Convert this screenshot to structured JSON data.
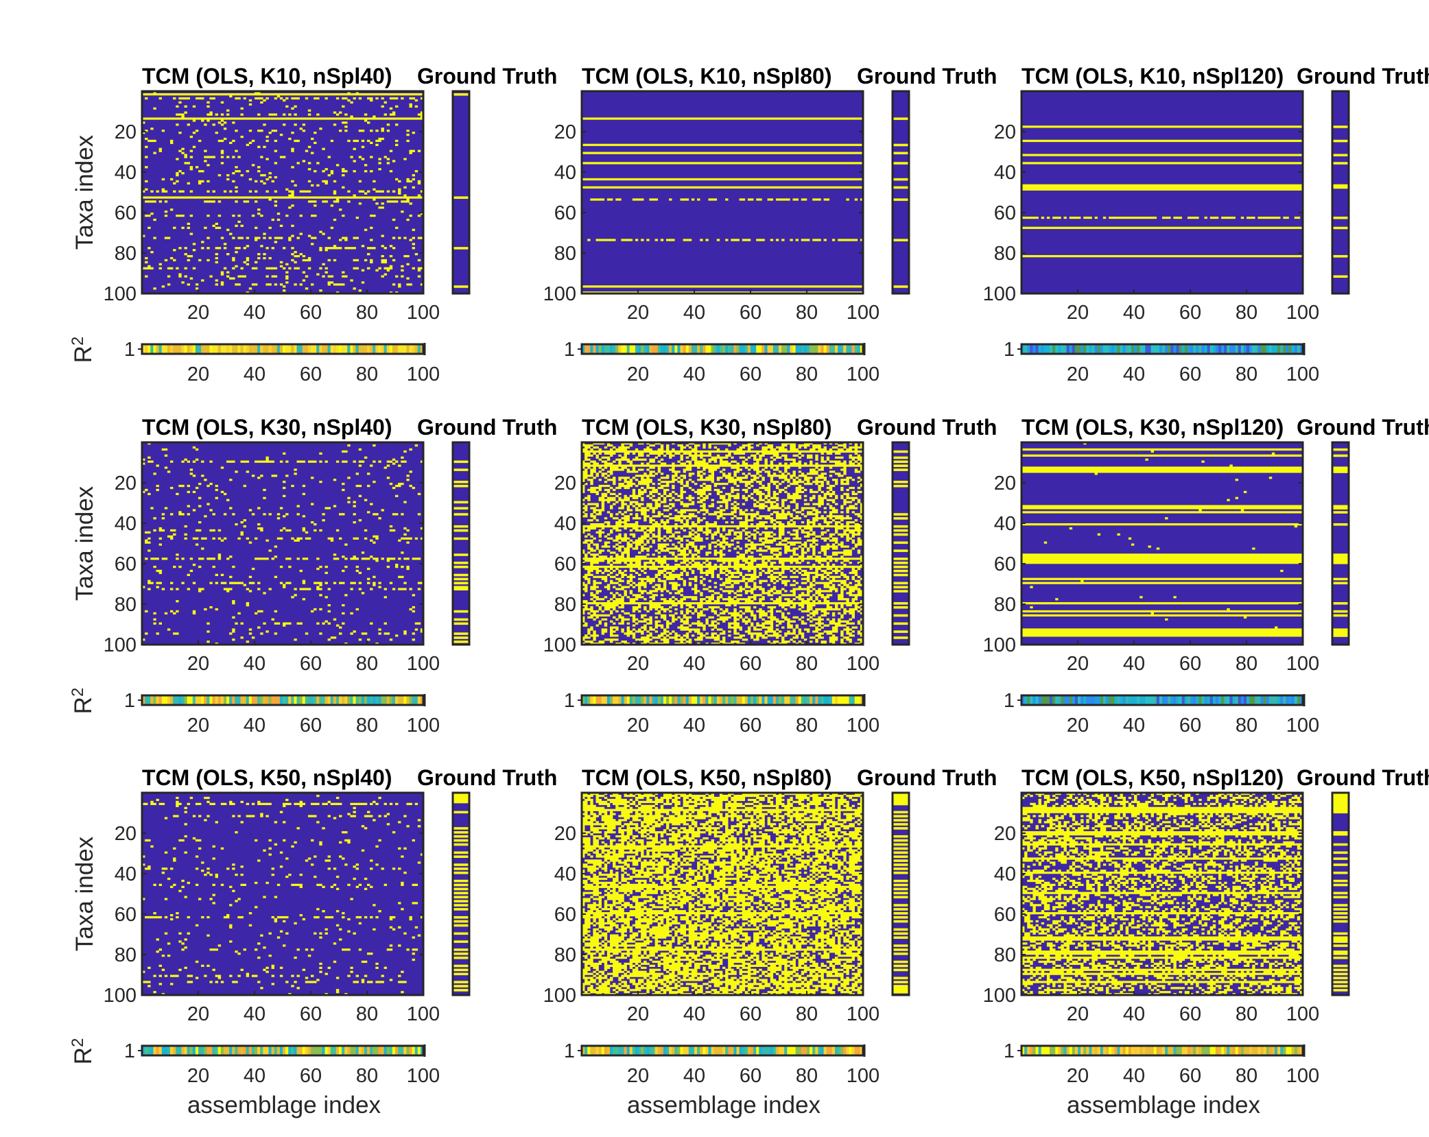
{
  "figure": {
    "ylabel": "Taxa index",
    "r2_label": "R",
    "r2_label_sup": "2",
    "xlabel": "assemblage index",
    "gt_title": "Ground Truth"
  },
  "colors": {
    "absent": "#3e26a8",
    "present": "#f9fb0e",
    "frame": "#262626"
  },
  "chart_data": [
    {
      "type": "heatmap",
      "title": "TCM (OLS, K10, nSpl40)",
      "K": 10,
      "nSpl": 40,
      "x_ticks": [
        20,
        40,
        60,
        80,
        100
      ],
      "y_ticks": [
        20,
        40,
        60,
        80,
        100
      ],
      "r2_ytick": "1",
      "r2_xticks": [
        20,
        40,
        60,
        80,
        100
      ],
      "rows": 100,
      "cols": 100,
      "full_rows": [
        2,
        14,
        53
      ],
      "dense_rows": {
        "4": 0.45,
        "8": 0.2,
        "12": 0.25,
        "20": 0.18,
        "25": 0.22,
        "30": 0.15,
        "33": 0.18,
        "40": 0.15,
        "45": 0.2,
        "50": 0.35,
        "55": 0.3,
        "62": 0.2,
        "68": 0.15,
        "73": 0.4,
        "78": 0.35,
        "84": 0.2,
        "88": 0.35,
        "92": 0.25,
        "96": 0.3
      },
      "noise": 0.04,
      "ground_truth_rows": [
        2,
        53,
        78,
        97
      ],
      "r2_palette": "yellow"
    },
    {
      "type": "heatmap",
      "title": "TCM (OLS, K10, nSpl80)",
      "K": 10,
      "nSpl": 80,
      "x_ticks": [
        20,
        40,
        60,
        80,
        100
      ],
      "y_ticks": [
        20,
        40,
        60,
        80,
        100
      ],
      "r2_ytick": "1",
      "r2_xticks": [
        20,
        40,
        60,
        80,
        100
      ],
      "rows": 100,
      "cols": 100,
      "full_rows": [
        14,
        27,
        31,
        36,
        44,
        48,
        97,
        100
      ],
      "dense_rows": {
        "54": 0.45,
        "74": 0.55
      },
      "noise": 0,
      "ground_truth_rows": [
        14,
        27,
        31,
        36,
        44,
        48,
        54,
        74,
        97
      ],
      "r2_palette": "mixed"
    },
    {
      "type": "heatmap",
      "title": "TCM (OLS, K10, nSpl120)",
      "K": 10,
      "nSpl": 120,
      "x_ticks": [
        20,
        40,
        60,
        80,
        100
      ],
      "y_ticks": [
        20,
        40,
        60,
        80,
        100
      ],
      "r2_ytick": "1",
      "r2_xticks": [
        20,
        40,
        60,
        80,
        100
      ],
      "rows": 100,
      "cols": 100,
      "full_rows": [
        18,
        25,
        32,
        36,
        47,
        48,
        49,
        68,
        82
      ],
      "dense_rows": {
        "63": 0.7
      },
      "noise": 0,
      "ground_truth_rows": [
        18,
        25,
        32,
        36,
        47,
        48,
        63,
        68,
        82,
        92
      ],
      "r2_palette": "cool"
    },
    {
      "type": "heatmap",
      "title": "TCM (OLS, K30, nSpl40)",
      "K": 30,
      "nSpl": 40,
      "x_ticks": [
        20,
        40,
        60,
        80,
        100
      ],
      "y_ticks": [
        20,
        40,
        60,
        80,
        100
      ],
      "r2_ytick": "1",
      "r2_xticks": [
        20,
        40,
        60,
        80,
        100
      ],
      "rows": 100,
      "cols": 100,
      "full_rows": [],
      "dense_rows": {
        "10": 0.45,
        "22": 0.15,
        "36": 0.2,
        "44": 0.25,
        "48": 0.3,
        "58": 0.45,
        "62": 0.15,
        "70": 0.35,
        "73": 0.3,
        "84": 0.15,
        "90": 0.2,
        "95": 0.15
      },
      "noise": 0.035,
      "ground_truth_rows": [
        10,
        14,
        20,
        22,
        30,
        33,
        36,
        42,
        44,
        48,
        56,
        60,
        62,
        66,
        68,
        70,
        72,
        73,
        84,
        88,
        90,
        95,
        97,
        99
      ],
      "r2_palette": "mixed"
    },
    {
      "type": "heatmap",
      "title": "TCM (OLS, K30, nSpl80)",
      "K": 30,
      "nSpl": 80,
      "x_ticks": [
        20,
        40,
        60,
        80,
        100
      ],
      "y_ticks": [
        20,
        40,
        60,
        80,
        100
      ],
      "r2_ytick": "1",
      "r2_xticks": [
        20,
        40,
        60,
        80,
        100
      ],
      "rows": 100,
      "cols": 100,
      "full_rows": [
        5,
        12,
        42,
        58,
        62,
        80
      ],
      "dense_rows": {},
      "noise": 0.45,
      "ground_truth_rows": [
        5,
        8,
        10,
        12,
        14,
        20,
        22,
        36,
        38,
        42,
        44,
        46,
        50,
        54,
        58,
        60,
        62,
        64,
        66,
        70,
        72,
        74,
        80,
        82,
        86,
        90,
        94,
        97
      ],
      "r2_palette": "mixed"
    },
    {
      "type": "heatmap",
      "title": "TCM (OLS, K30, nSpl120)",
      "K": 30,
      "nSpl": 120,
      "x_ticks": [
        20,
        40,
        60,
        80,
        100
      ],
      "y_ticks": [
        20,
        40,
        60,
        80,
        100
      ],
      "r2_ytick": "1",
      "r2_xticks": [
        20,
        40,
        60,
        80,
        100
      ],
      "rows": 100,
      "cols": 100,
      "full_rows": [
        4,
        7,
        13,
        14,
        15,
        32,
        33,
        35,
        41,
        56,
        57,
        58,
        59,
        60,
        68,
        70,
        80,
        84,
        86,
        93,
        94,
        95,
        96
      ],
      "dense_rows": {},
      "noise": 0.005,
      "ground_truth_rows": [
        4,
        7,
        13,
        14,
        15,
        32,
        33,
        35,
        41,
        56,
        57,
        58,
        59,
        60,
        68,
        70,
        80,
        84,
        86,
        93,
        94,
        95,
        96
      ],
      "r2_palette": "cool"
    },
    {
      "type": "heatmap",
      "title": "TCM (OLS, K50, nSpl40)",
      "K": 50,
      "nSpl": 40,
      "x_ticks": [
        20,
        40,
        60,
        80,
        100
      ],
      "y_ticks": [
        20,
        40,
        60,
        80,
        100
      ],
      "r2_ytick": "1",
      "r2_xticks": [
        20,
        40,
        60,
        80,
        100
      ],
      "rows": 100,
      "cols": 100,
      "full_rows": [],
      "dense_rows": {
        "6": 0.6,
        "12": 0.2,
        "24": 0.15,
        "38": 0.15,
        "46": 0.2,
        "62": 0.35,
        "70": 0.15,
        "78": 0.15,
        "91": 0.2,
        "94": 0.3
      },
      "noise": 0.03,
      "ground_truth_rows": [
        1,
        2,
        3,
        4,
        5,
        10,
        18,
        20,
        22,
        24,
        26,
        30,
        32,
        36,
        38,
        40,
        44,
        46,
        48,
        50,
        52,
        54,
        56,
        58,
        62,
        64,
        66,
        70,
        74,
        78,
        80,
        82,
        86,
        88,
        90,
        94,
        96,
        98
      ],
      "r2_palette": "mixed"
    },
    {
      "type": "heatmap",
      "title": "TCM (OLS, K50, nSpl80)",
      "K": 50,
      "nSpl": 80,
      "x_ticks": [
        20,
        40,
        60,
        80,
        100
      ],
      "y_ticks": [
        20,
        40,
        60,
        80,
        100
      ],
      "r2_ytick": "1",
      "r2_xticks": [
        20,
        40,
        60,
        80,
        100
      ],
      "rows": 100,
      "cols": 100,
      "full_rows": [
        9,
        27,
        47,
        60,
        78
      ],
      "dense_rows": {},
      "noise": 0.62,
      "ground_truth_rows": [
        1,
        2,
        3,
        4,
        5,
        6,
        10,
        12,
        14,
        16,
        18,
        22,
        24,
        26,
        28,
        30,
        32,
        34,
        36,
        38,
        40,
        44,
        46,
        48,
        50,
        52,
        56,
        58,
        60,
        62,
        64,
        68,
        70,
        72,
        76,
        78,
        80,
        84,
        86,
        88,
        92,
        94,
        96,
        97,
        98,
        99
      ],
      "r2_palette": "mixed"
    },
    {
      "type": "heatmap",
      "title": "TCM (OLS, K50, nSpl120)",
      "K": 50,
      "nSpl": 120,
      "x_ticks": [
        20,
        40,
        60,
        80,
        100
      ],
      "y_ticks": [
        20,
        40,
        60,
        80,
        100
      ],
      "r2_ytick": "1",
      "r2_xticks": [
        20,
        40,
        60,
        80,
        100
      ],
      "rows": 100,
      "cols": 100,
      "full_rows": [
        8,
        9,
        10,
        20,
        21,
        26,
        33,
        40,
        50,
        60,
        72,
        73,
        79,
        80,
        82,
        88,
        90,
        94
      ],
      "dense_rows": {},
      "noise": 0.4,
      "ground_truth_rows": [
        1,
        2,
        3,
        4,
        5,
        6,
        7,
        8,
        9,
        10,
        20,
        21,
        26,
        30,
        33,
        36,
        40,
        44,
        46,
        50,
        52,
        56,
        58,
        60,
        62,
        64,
        70,
        72,
        73,
        74,
        76,
        79,
        80,
        82,
        86,
        88,
        90,
        92,
        94,
        96,
        98
      ],
      "r2_palette": "warm"
    }
  ]
}
